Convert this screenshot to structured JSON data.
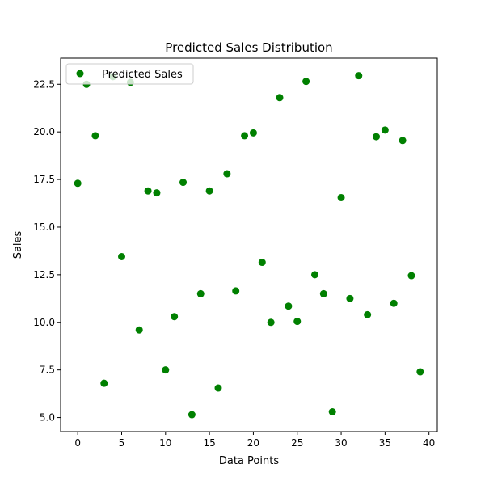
{
  "chart_data": {
    "type": "scatter",
    "title": "Predicted Sales Distribution",
    "xlabel": "Data Points",
    "ylabel": "Sales",
    "xlim": [
      -1.95,
      40.95
    ],
    "ylim": [
      4.26,
      23.87
    ],
    "xticks": [
      0,
      5,
      10,
      15,
      20,
      25,
      30,
      35,
      40
    ],
    "xtick_labels": [
      "0",
      "5",
      "10",
      "15",
      "20",
      "25",
      "30",
      "35",
      "40"
    ],
    "yticks": [
      5.0,
      7.5,
      10.0,
      12.5,
      15.0,
      17.5,
      20.0,
      22.5
    ],
    "ytick_labels": [
      "5.0",
      "7.5",
      "10.0",
      "12.5",
      "15.0",
      "17.5",
      "20.0",
      "22.5"
    ],
    "grid": false,
    "legend_position": "top-left",
    "series": [
      {
        "name": "Predicted Sales",
        "color": "#008000",
        "x": [
          0,
          1,
          2,
          3,
          4,
          5,
          6,
          7,
          8,
          9,
          10,
          11,
          12,
          13,
          14,
          15,
          16,
          17,
          18,
          19,
          20,
          21,
          22,
          23,
          24,
          25,
          26,
          27,
          28,
          29,
          30,
          31,
          32,
          33,
          34,
          35,
          36,
          37,
          38,
          39
        ],
        "y": [
          17.3,
          22.5,
          19.8,
          6.8,
          22.9,
          13.45,
          22.6,
          9.6,
          16.9,
          16.8,
          7.5,
          10.3,
          17.35,
          5.15,
          11.5,
          16.9,
          6.55,
          17.8,
          11.65,
          19.8,
          19.95,
          13.15,
          10.0,
          21.8,
          10.85,
          10.05,
          22.65,
          12.5,
          11.5,
          5.3,
          16.55,
          11.25,
          22.95,
          10.4,
          19.75,
          20.1,
          11.0,
          19.55,
          12.45,
          7.4
        ]
      }
    ]
  }
}
